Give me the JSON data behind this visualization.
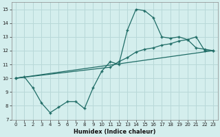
{
  "xlabel": "Humidex (Indice chaleur)",
  "background_color": "#d4eeed",
  "grid_color": "#b8d8d8",
  "line_color": "#1e6b65",
  "xlim": [
    -0.5,
    23.5
  ],
  "ylim": [
    7,
    15.5
  ],
  "xticks": [
    0,
    1,
    2,
    3,
    4,
    5,
    6,
    7,
    8,
    9,
    10,
    11,
    12,
    13,
    14,
    15,
    16,
    17,
    18,
    19,
    20,
    21,
    22,
    23
  ],
  "yticks": [
    7,
    8,
    9,
    10,
    11,
    12,
    13,
    14,
    15
  ],
  "line1_x": [
    0,
    1,
    2,
    3,
    4,
    5,
    6,
    7,
    8,
    9,
    10,
    11,
    12,
    13,
    14,
    15,
    16,
    17,
    18,
    19,
    20,
    21,
    22,
    23
  ],
  "line1_y": [
    10.0,
    10.1,
    9.3,
    8.2,
    7.5,
    7.9,
    8.3,
    8.3,
    7.8,
    9.3,
    10.5,
    11.2,
    11.0,
    13.5,
    15.0,
    14.9,
    14.4,
    13.0,
    12.9,
    13.0,
    12.8,
    12.2,
    12.1,
    12.0
  ],
  "line2_x": [
    0,
    11,
    12,
    13,
    14,
    15,
    16,
    17,
    18,
    19,
    20,
    21,
    22,
    23
  ],
  "line2_y": [
    10.0,
    10.8,
    11.2,
    11.5,
    11.9,
    12.1,
    12.2,
    12.4,
    12.5,
    12.7,
    12.8,
    13.0,
    12.0,
    12.0
  ],
  "line3_x": [
    0,
    23
  ],
  "line3_y": [
    10.0,
    12.0
  ]
}
